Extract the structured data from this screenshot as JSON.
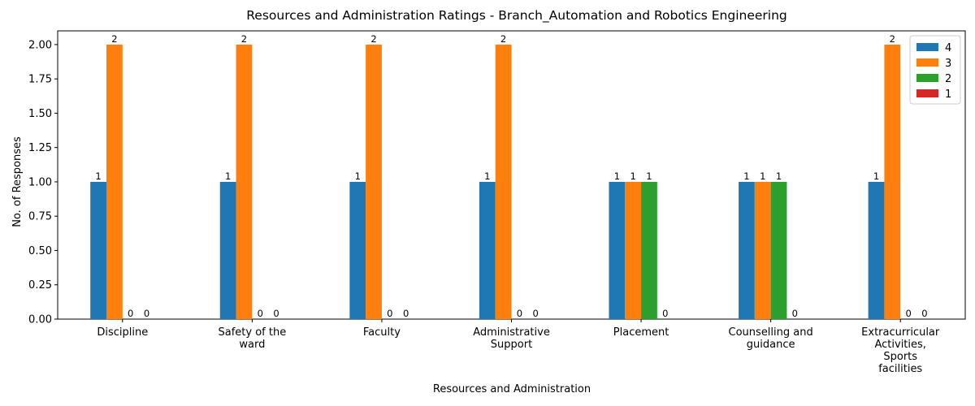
{
  "chart_data": {
    "type": "bar",
    "title": "Resources and Administration Ratings - Branch_Automation and Robotics Engineering",
    "xlabel": "Resources and Administration",
    "ylabel": "No. of Responses",
    "categories": [
      [
        "Discipline"
      ],
      [
        "Safety of the",
        "ward"
      ],
      [
        "Faculty"
      ],
      [
        "Administrative",
        "Support"
      ],
      [
        "Placement"
      ],
      [
        "Counselling and",
        "guidance"
      ],
      [
        "Extracurricular",
        "Activities,",
        "Sports",
        "facilities"
      ]
    ],
    "series": [
      {
        "name": "4",
        "color": "#1f77b4",
        "values": [
          1,
          1,
          1,
          1,
          1,
          1,
          1
        ]
      },
      {
        "name": "3",
        "color": "#ff7f0e",
        "values": [
          2,
          2,
          2,
          2,
          1,
          1,
          2
        ]
      },
      {
        "name": "2",
        "color": "#2ca02c",
        "values": [
          0,
          0,
          0,
          0,
          1,
          1,
          0
        ]
      },
      {
        "name": "1",
        "color": "#d62728",
        "values": [
          0,
          0,
          0,
          0,
          0,
          0,
          0
        ]
      }
    ],
    "ylim": [
      0,
      2.1
    ],
    "yticks": [
      "0.00",
      "0.25",
      "0.50",
      "0.75",
      "1.00",
      "1.25",
      "1.50",
      "1.75",
      "2.00"
    ],
    "grid": false,
    "legend_position": "top-right"
  }
}
